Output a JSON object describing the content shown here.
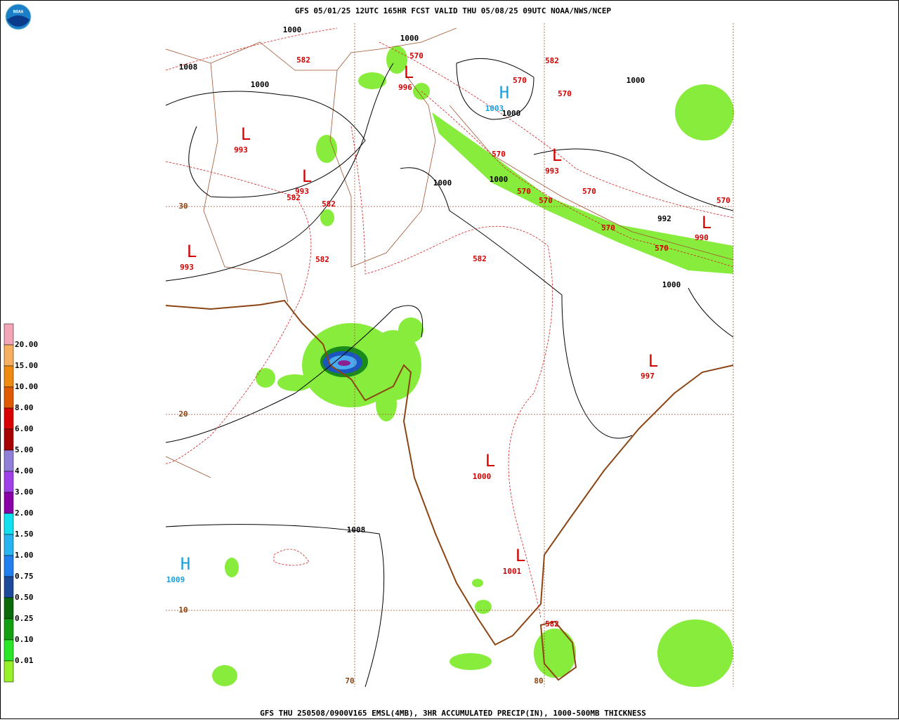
{
  "header": {
    "title": "GFS 05/01/25 12UTC 165HR FCST VALID THU 05/08/25 09UTC NOAA/NWS/NCEP",
    "logo": "NOAA"
  },
  "footer": {
    "caption": "GFS THU 250508/0900V165 EMSL(4MB), 3HR ACCUMULATED PRECIP(IN), 1000-500MB THICKNESS"
  },
  "legend": {
    "labels": [
      "20.00",
      "15.00",
      "10.00",
      "8.00",
      "6.00",
      "5.00",
      "4.00",
      "3.00",
      "2.00",
      "1.50",
      "1.00",
      "0.75",
      "0.50",
      "0.25",
      "0.10",
      "0.01"
    ]
  },
  "map": {
    "grid_labels": [
      "30",
      "20",
      "10",
      "70",
      "80"
    ],
    "labels": [
      "1000",
      "1000",
      "1008",
      "1000",
      "582",
      "570",
      "L",
      "996",
      "582",
      "570",
      "570",
      "1000",
      "H",
      "1003",
      "1000",
      "L",
      "993",
      "L",
      "993",
      "582",
      "582",
      "570",
      "L",
      "993",
      "1000",
      "1000",
      "570",
      "570",
      "570",
      "570",
      "992",
      "L",
      "990",
      "570",
      "570",
      "L",
      "993",
      "582",
      "582",
      "1000",
      "L",
      "997",
      "L",
      "1000",
      "1008",
      "H",
      "1009",
      "L",
      "1001",
      "582"
    ]
  }
}
